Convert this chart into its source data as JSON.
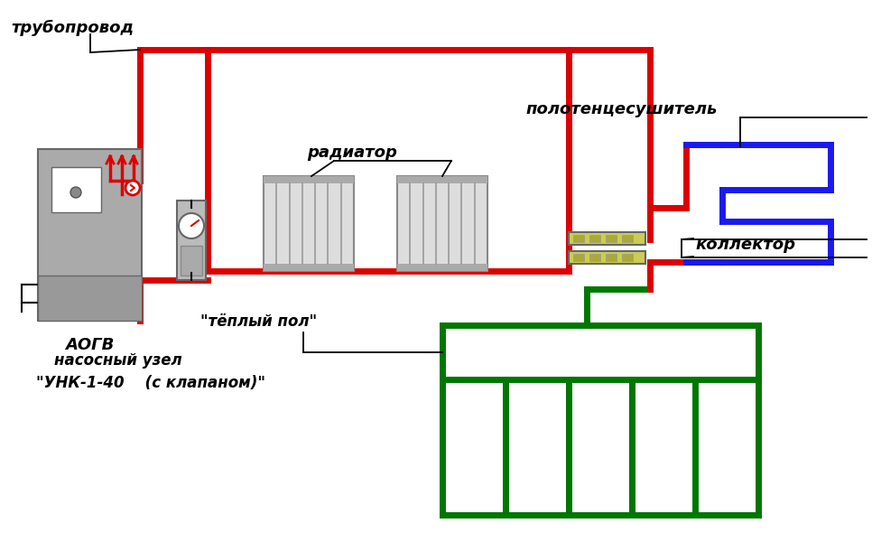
{
  "bg_color": "#ffffff",
  "red": "#dd0000",
  "blue": "#1a1aee",
  "green": "#007700",
  "black": "#000000",
  "white": "#ffffff",
  "gray_boiler": "#aaaaaa",
  "gray_dark": "#777777",
  "gray_light": "#cccccc",
  "yellow_col": "#cccc55",
  "label_truboprovod": "трубопровод",
  "label_radiator": "радиатор",
  "label_aogv": "АОГВ",
  "label_collector": "коллектор",
  "label_towel": "полотенцесушитель",
  "label_warm_floor": "\"тёплый пол\"",
  "label_pump1": "насосный узел",
  "label_pump2": "\"УНК-1-40    (с клапаном)\""
}
